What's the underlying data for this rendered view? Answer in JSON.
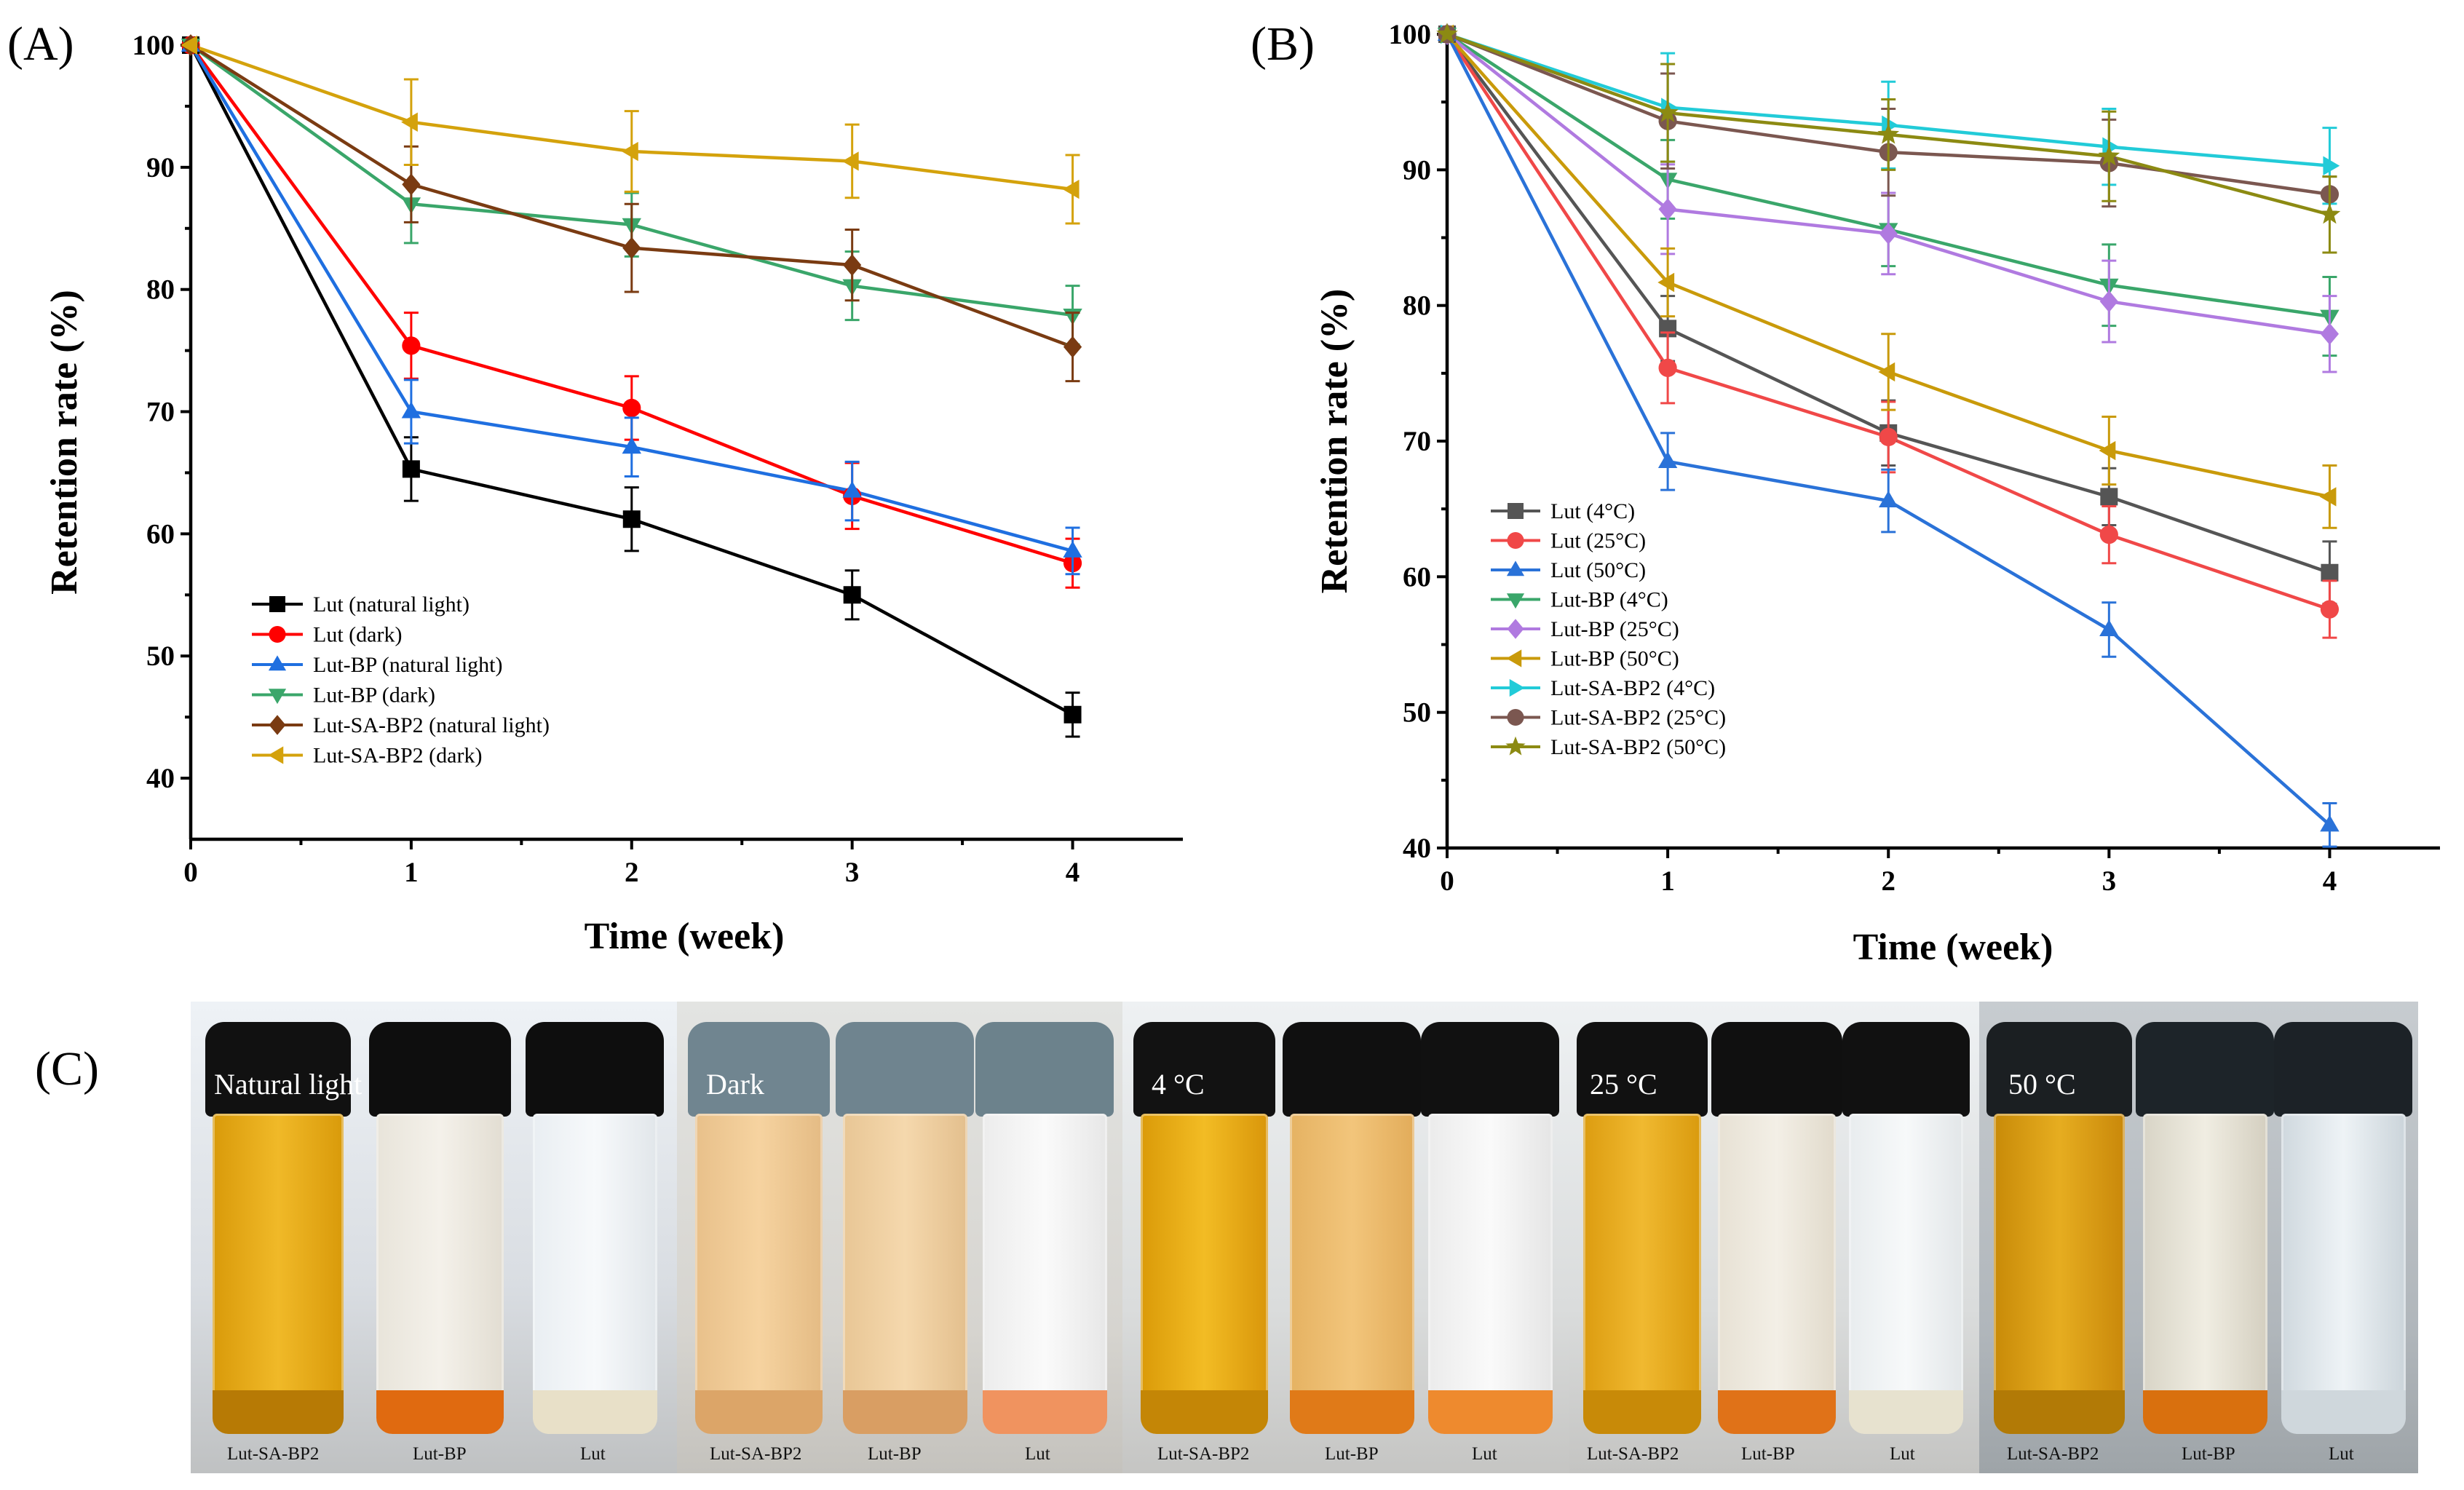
{
  "panels": {
    "A": {
      "label": "(A)"
    },
    "B": {
      "label": "(B)"
    },
    "C": {
      "label": "(C)"
    }
  },
  "chart_data": [
    {
      "id": "A",
      "type": "line",
      "title": "",
      "xlabel": "Time (week)",
      "ylabel": "Retention rate (%)",
      "x": [
        0,
        1,
        2,
        3,
        4
      ],
      "xlim": [
        0,
        4.5
      ],
      "ylim": [
        35,
        100
      ],
      "xticks": [
        0,
        1,
        2,
        3,
        4
      ],
      "yticks": [
        40,
        50,
        60,
        70,
        80,
        90,
        100
      ],
      "legend_position": "bottom-left",
      "series": [
        {
          "name": "Lut (natural light)",
          "color": "#000000",
          "marker": "square",
          "values": [
            100,
            65.3,
            61.2,
            55.0,
            45.2
          ],
          "errors": [
            0,
            2.6,
            2.6,
            2.0,
            1.8
          ]
        },
        {
          "name": "Lut (dark)",
          "color": "#ff0000",
          "marker": "circle",
          "values": [
            100,
            75.4,
            70.3,
            63.1,
            57.6
          ],
          "errors": [
            0,
            2.7,
            2.6,
            2.7,
            2.0
          ]
        },
        {
          "name": "Lut-BP (natural light)",
          "color": "#1f6fe0",
          "marker": "triangle-up",
          "values": [
            100,
            70.0,
            67.1,
            63.5,
            58.6
          ],
          "errors": [
            0,
            2.6,
            2.4,
            2.4,
            1.9
          ]
        },
        {
          "name": "Lut-BP (dark)",
          "color": "#3aa66a",
          "marker": "triangle-down",
          "values": [
            100,
            87.0,
            85.3,
            80.3,
            77.9
          ],
          "errors": [
            0,
            3.2,
            2.6,
            2.8,
            2.4
          ]
        },
        {
          "name": "Lut-SA-BP2  (natural light)",
          "color": "#7a3b12",
          "marker": "diamond",
          "values": [
            100,
            88.6,
            83.4,
            82.0,
            75.3
          ],
          "errors": [
            0,
            3.1,
            3.6,
            2.9,
            2.8
          ]
        },
        {
          "name": "Lut-SA-BP2  (dark)",
          "color": "#d4a20c",
          "marker": "triangle-left",
          "values": [
            100,
            93.7,
            91.3,
            90.5,
            88.2
          ],
          "errors": [
            0,
            3.5,
            3.3,
            3.0,
            2.8
          ]
        }
      ]
    },
    {
      "id": "B",
      "type": "line",
      "title": "",
      "xlabel": "Time (week)",
      "ylabel": "Retention rate (%)",
      "x": [
        0,
        1,
        2,
        3,
        4
      ],
      "xlim": [
        0,
        4.5
      ],
      "ylim": [
        40,
        100
      ],
      "xticks": [
        0,
        1,
        2,
        3,
        4
      ],
      "yticks": [
        40,
        50,
        60,
        70,
        80,
        90,
        100
      ],
      "legend_position": "middle-left",
      "series": [
        {
          "name": "Lut (4°C)",
          "color": "#555555",
          "marker": "square",
          "values": [
            100,
            78.3,
            70.6,
            65.9,
            60.3
          ],
          "errors": [
            0,
            2.4,
            2.4,
            2.1,
            2.3
          ]
        },
        {
          "name": "Lut (25°C)",
          "color": "#f04848",
          "marker": "circle",
          "values": [
            100,
            75.4,
            70.3,
            63.1,
            57.6
          ],
          "errors": [
            0,
            2.6,
            2.6,
            2.1,
            2.1
          ]
        },
        {
          "name": "Lut (50°C)",
          "color": "#2a72d8",
          "marker": "triangle-up",
          "values": [
            100,
            68.5,
            65.6,
            56.1,
            41.7
          ],
          "errors": [
            0,
            2.1,
            2.3,
            2.0,
            1.6
          ]
        },
        {
          "name": "Lut-BP (4°C)",
          "color": "#3aa66a",
          "marker": "triangle-down",
          "values": [
            100,
            89.3,
            85.6,
            81.5,
            79.2
          ],
          "errors": [
            0,
            2.9,
            2.7,
            3.0,
            2.9
          ]
        },
        {
          "name": "Lut-BP (25°C)",
          "color": "#b07ae0",
          "marker": "diamond",
          "values": [
            100,
            87.1,
            85.3,
            80.3,
            77.9
          ],
          "errors": [
            0,
            3.3,
            3.0,
            3.0,
            2.8
          ]
        },
        {
          "name": "Lut-BP (50°C)",
          "color": "#c99a0a",
          "marker": "triangle-left",
          "values": [
            100,
            81.7,
            75.1,
            69.3,
            65.9
          ],
          "errors": [
            0,
            2.5,
            2.8,
            2.5,
            2.3
          ]
        },
        {
          "name": "Lut-SA-BP2 (4°C)",
          "color": "#22cbd8",
          "marker": "triangle-right",
          "values": [
            100,
            94.6,
            93.3,
            91.7,
            90.3
          ],
          "errors": [
            0,
            4.0,
            3.2,
            2.8,
            2.8
          ]
        },
        {
          "name": "Lut-SA-BP2 (25°C)",
          "color": "#7b5750",
          "marker": "circle",
          "values": [
            100,
            93.6,
            91.3,
            90.5,
            88.2
          ],
          "errors": [
            0,
            3.5,
            3.2,
            3.2,
            1.3
          ]
        },
        {
          "name": "Lut-SA-BP2 (50°C)",
          "color": "#8c8a12",
          "marker": "star",
          "values": [
            100,
            94.2,
            92.6,
            91.0,
            86.7
          ],
          "errors": [
            0,
            3.6,
            2.6,
            3.3,
            2.8
          ]
        }
      ]
    }
  ],
  "photos": [
    {
      "caption": "Natural light",
      "vials": [
        "Lut-SA-BP2",
        "Lut-BP",
        "Lut"
      ]
    },
    {
      "caption": "Dark",
      "vials": [
        "Lut-SA-BP2",
        "Lut-BP",
        "Lut"
      ]
    },
    {
      "caption": "4 °C",
      "vials": [
        "Lut-SA-BP2",
        "Lut-BP",
        "Lut"
      ]
    },
    {
      "caption": "25 °C",
      "vials": [
        "Lut-SA-BP2",
        "Lut-BP",
        "Lut"
      ]
    },
    {
      "caption": "50 °C",
      "vials": [
        "Lut-SA-BP2",
        "Lut-BP",
        "Lut"
      ]
    }
  ]
}
